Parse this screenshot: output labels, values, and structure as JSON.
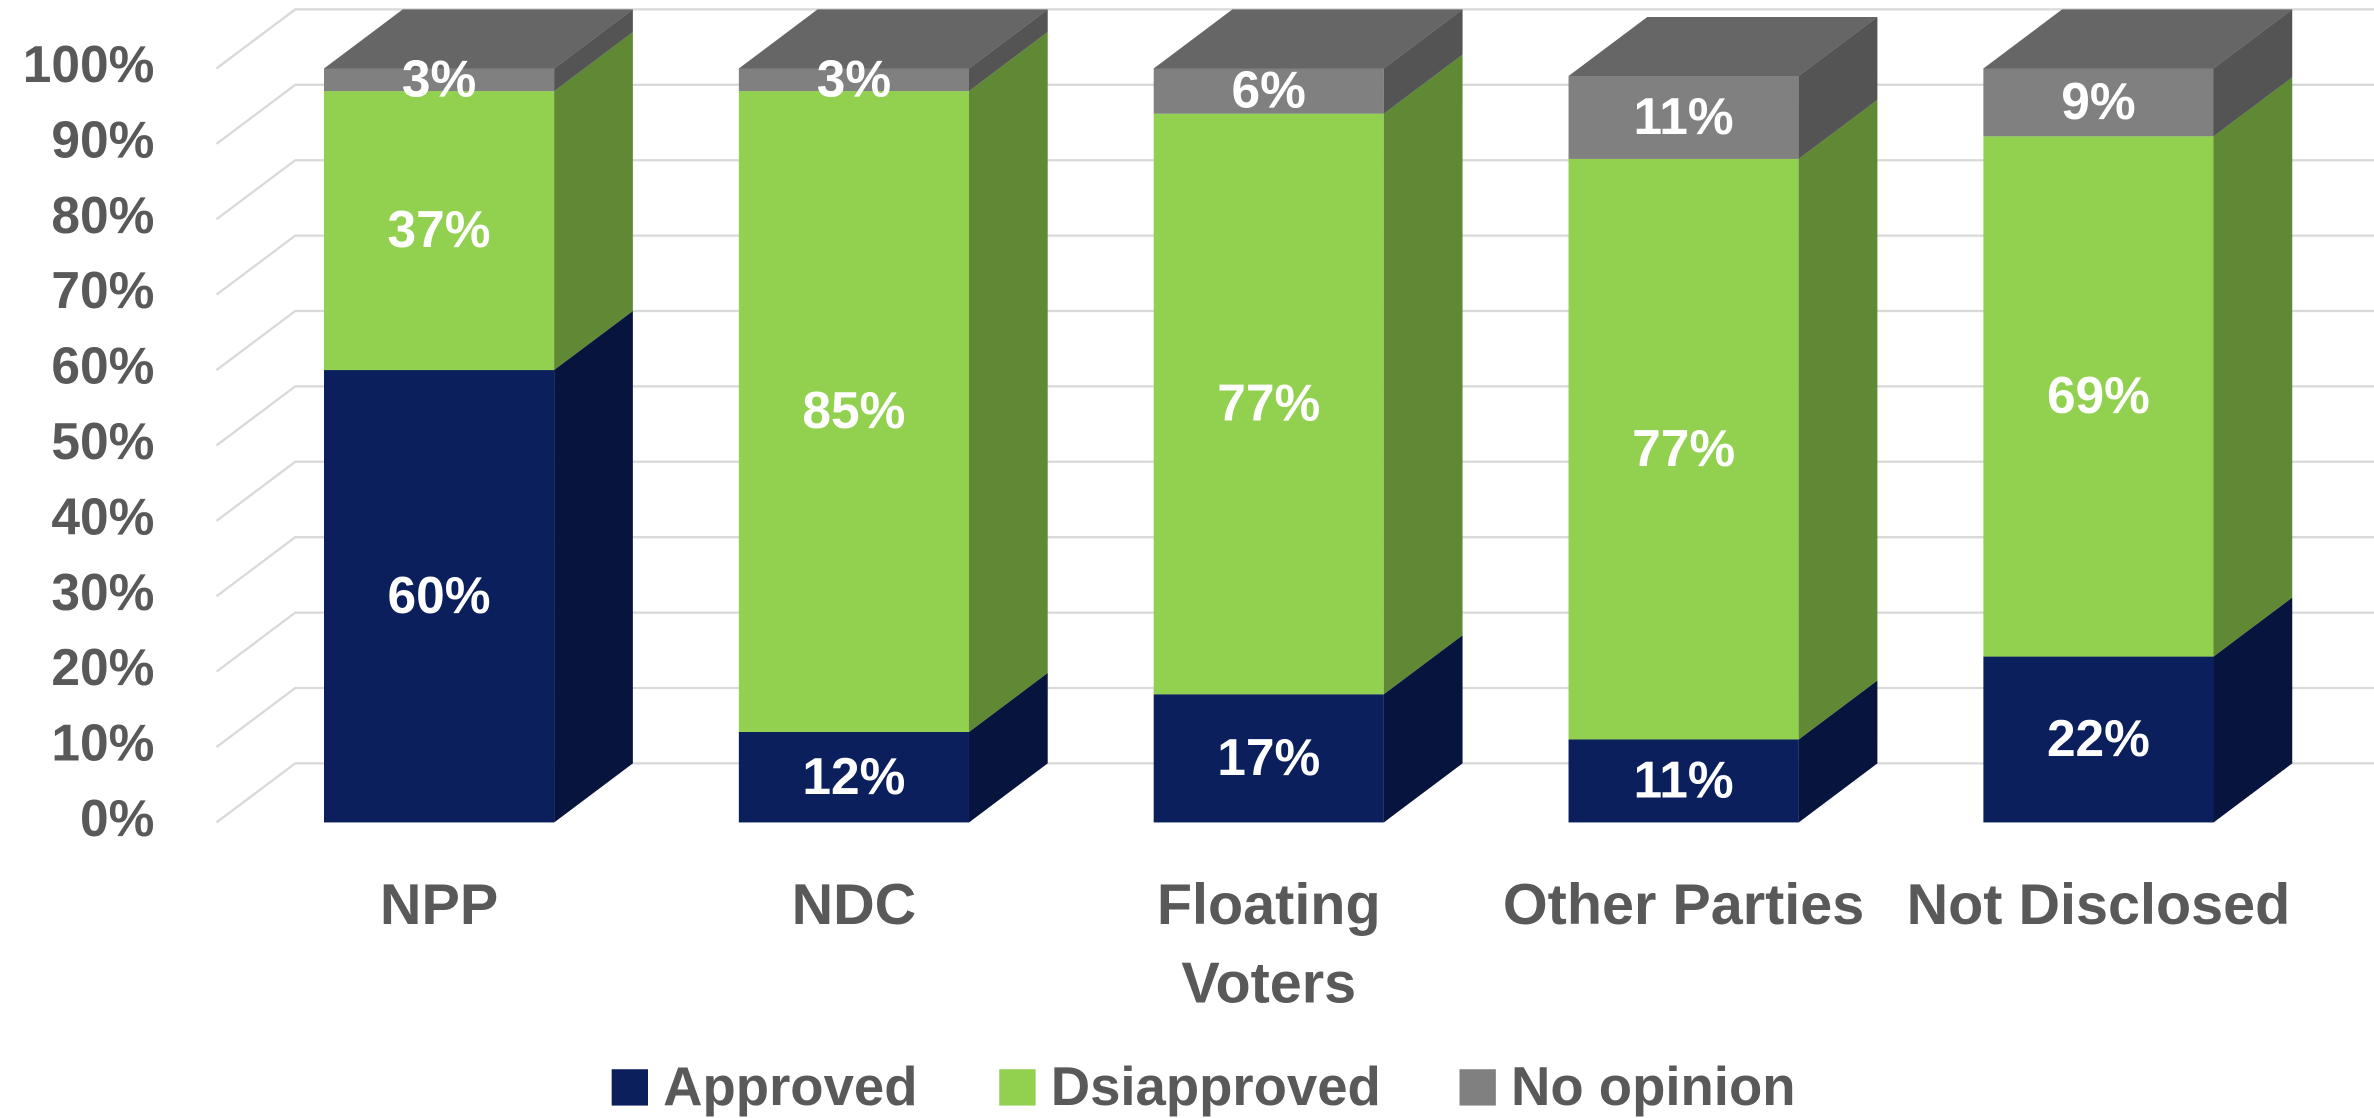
{
  "chart_data": {
    "type": "bar3d_stacked",
    "categories": [
      "NPP",
      "NDC",
      "Floating Voters",
      "Other Parties",
      "Not Disclosed"
    ],
    "series": [
      {
        "name": "Approved",
        "color": "#0b1f5c",
        "values": [
          60,
          12,
          17,
          11,
          22
        ],
        "value_labels": [
          "60%",
          "12%",
          "17%",
          "11%",
          "22%"
        ]
      },
      {
        "name": "Dsiapproved",
        "color": "#92d050",
        "values": [
          37,
          85,
          77,
          77,
          69
        ],
        "value_labels": [
          "37%",
          "85%",
          "77%",
          "77%",
          "69%"
        ]
      },
      {
        "name": "No opinion",
        "color": "#808080",
        "values": [
          3,
          3,
          6,
          11,
          9
        ],
        "value_labels": [
          "3%",
          "3%",
          "6%",
          "11%",
          "9%"
        ]
      }
    ],
    "ylim": [
      0,
      100
    ],
    "yticks": [
      {
        "value": 0,
        "label": "0%"
      },
      {
        "value": 10,
        "label": "10%"
      },
      {
        "value": 20,
        "label": "20%"
      },
      {
        "value": 30,
        "label": "30%"
      },
      {
        "value": 40,
        "label": "40%"
      },
      {
        "value": 50,
        "label": "50%"
      },
      {
        "value": 60,
        "label": "60%"
      },
      {
        "value": 70,
        "label": "70%"
      },
      {
        "value": 80,
        "label": "80%"
      },
      {
        "value": 90,
        "label": "90%"
      },
      {
        "value": 100,
        "label": "100%"
      }
    ],
    "grid": true,
    "legend": "bottom"
  }
}
